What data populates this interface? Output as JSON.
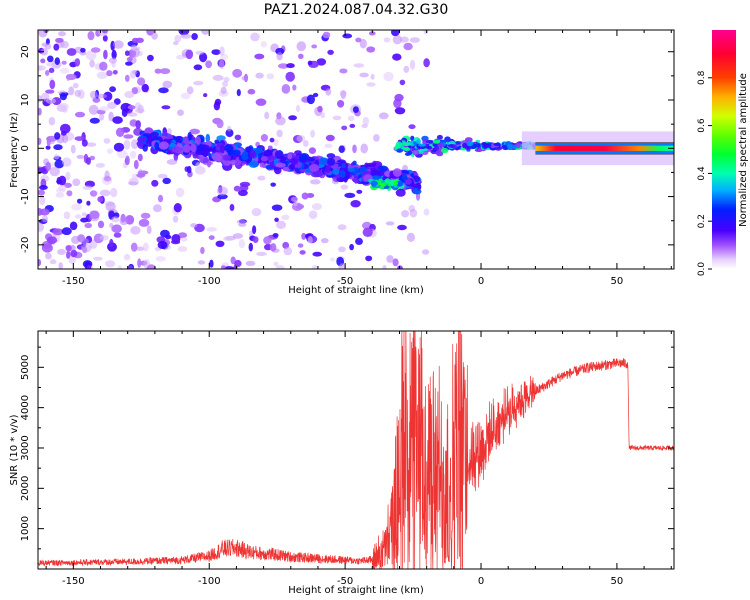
{
  "figure": {
    "title": "PAZ1.2024.087.04.32.G30"
  },
  "chart_data": [
    {
      "type": "heatmap",
      "name": "spectrogram",
      "xlabel": "Height of straight line (km)",
      "ylabel": "Frequency (Hz)",
      "xlim": [
        -163,
        71
      ],
      "ylim": [
        -25,
        24.5
      ],
      "xticks": [
        -150,
        -100,
        -50,
        0,
        50
      ],
      "yticks": [
        -20,
        -10,
        0,
        10,
        20
      ],
      "colorbar": {
        "label": "Normalized spectral amplitude",
        "range": [
          0.0,
          1.0
        ],
        "ticks": [
          0.0,
          0.2,
          0.4,
          0.6,
          0.8
        ],
        "colormap": "gist_rainbow_r"
      },
      "features": [
        {
          "x_range": [
            -163,
            -125
          ],
          "f_range": [
            -25,
            24.5
          ],
          "amplitude": 0.15,
          "description_key": "scattered"
        },
        {
          "x_range": [
            -125,
            -20
          ],
          "f_center_start": 2,
          "f_center_end": -7,
          "amplitude": 0.2
        },
        {
          "x_range": [
            -40,
            -30
          ],
          "f_center": -7.5,
          "amplitude": 0.5
        },
        {
          "x_range": [
            -30,
            20
          ],
          "f_center": 0.5,
          "amplitude": 0.45
        },
        {
          "x_range": [
            20,
            71
          ],
          "f_center": 0,
          "amplitude": 0.95
        }
      ]
    },
    {
      "type": "line",
      "name": "snr",
      "xlabel": "Height of straight line (km)",
      "ylabel": "SNR (10 * v/v)",
      "xlim": [
        -163,
        71
      ],
      "ylim": [
        0,
        5900
      ],
      "xticks": [
        -150,
        -100,
        -50,
        0,
        50
      ],
      "yticks": [
        1000,
        2000,
        3000,
        4000,
        5000
      ],
      "line_color": "#ee3333",
      "series": [
        {
          "x": [
            -163,
            -150,
            -130,
            -110,
            -100,
            -95,
            -90,
            -85,
            -80,
            -75,
            -70,
            -60,
            -50,
            -45,
            -40,
            -35,
            -32,
            -30,
            -28,
            -26,
            -24,
            -22,
            -20,
            -18,
            -15,
            -12,
            -10,
            -8,
            -5,
            0,
            5,
            10,
            15,
            20,
            25,
            30,
            35,
            40,
            45,
            50,
            54,
            54.5,
            60,
            65,
            71
          ],
          "y": [
            150,
            160,
            180,
            220,
            320,
            500,
            520,
            420,
            380,
            350,
            300,
            260,
            220,
            200,
            230,
            500,
            1200,
            2200,
            3300,
            3000,
            2800,
            2600,
            2400,
            2200,
            2200,
            2000,
            2600,
            3000,
            2800,
            3000,
            3500,
            3900,
            4200,
            4400,
            4600,
            4800,
            4900,
            5000,
            5050,
            5100,
            5100,
            3000,
            3000,
            3000,
            3000
          ]
        }
      ]
    }
  ]
}
